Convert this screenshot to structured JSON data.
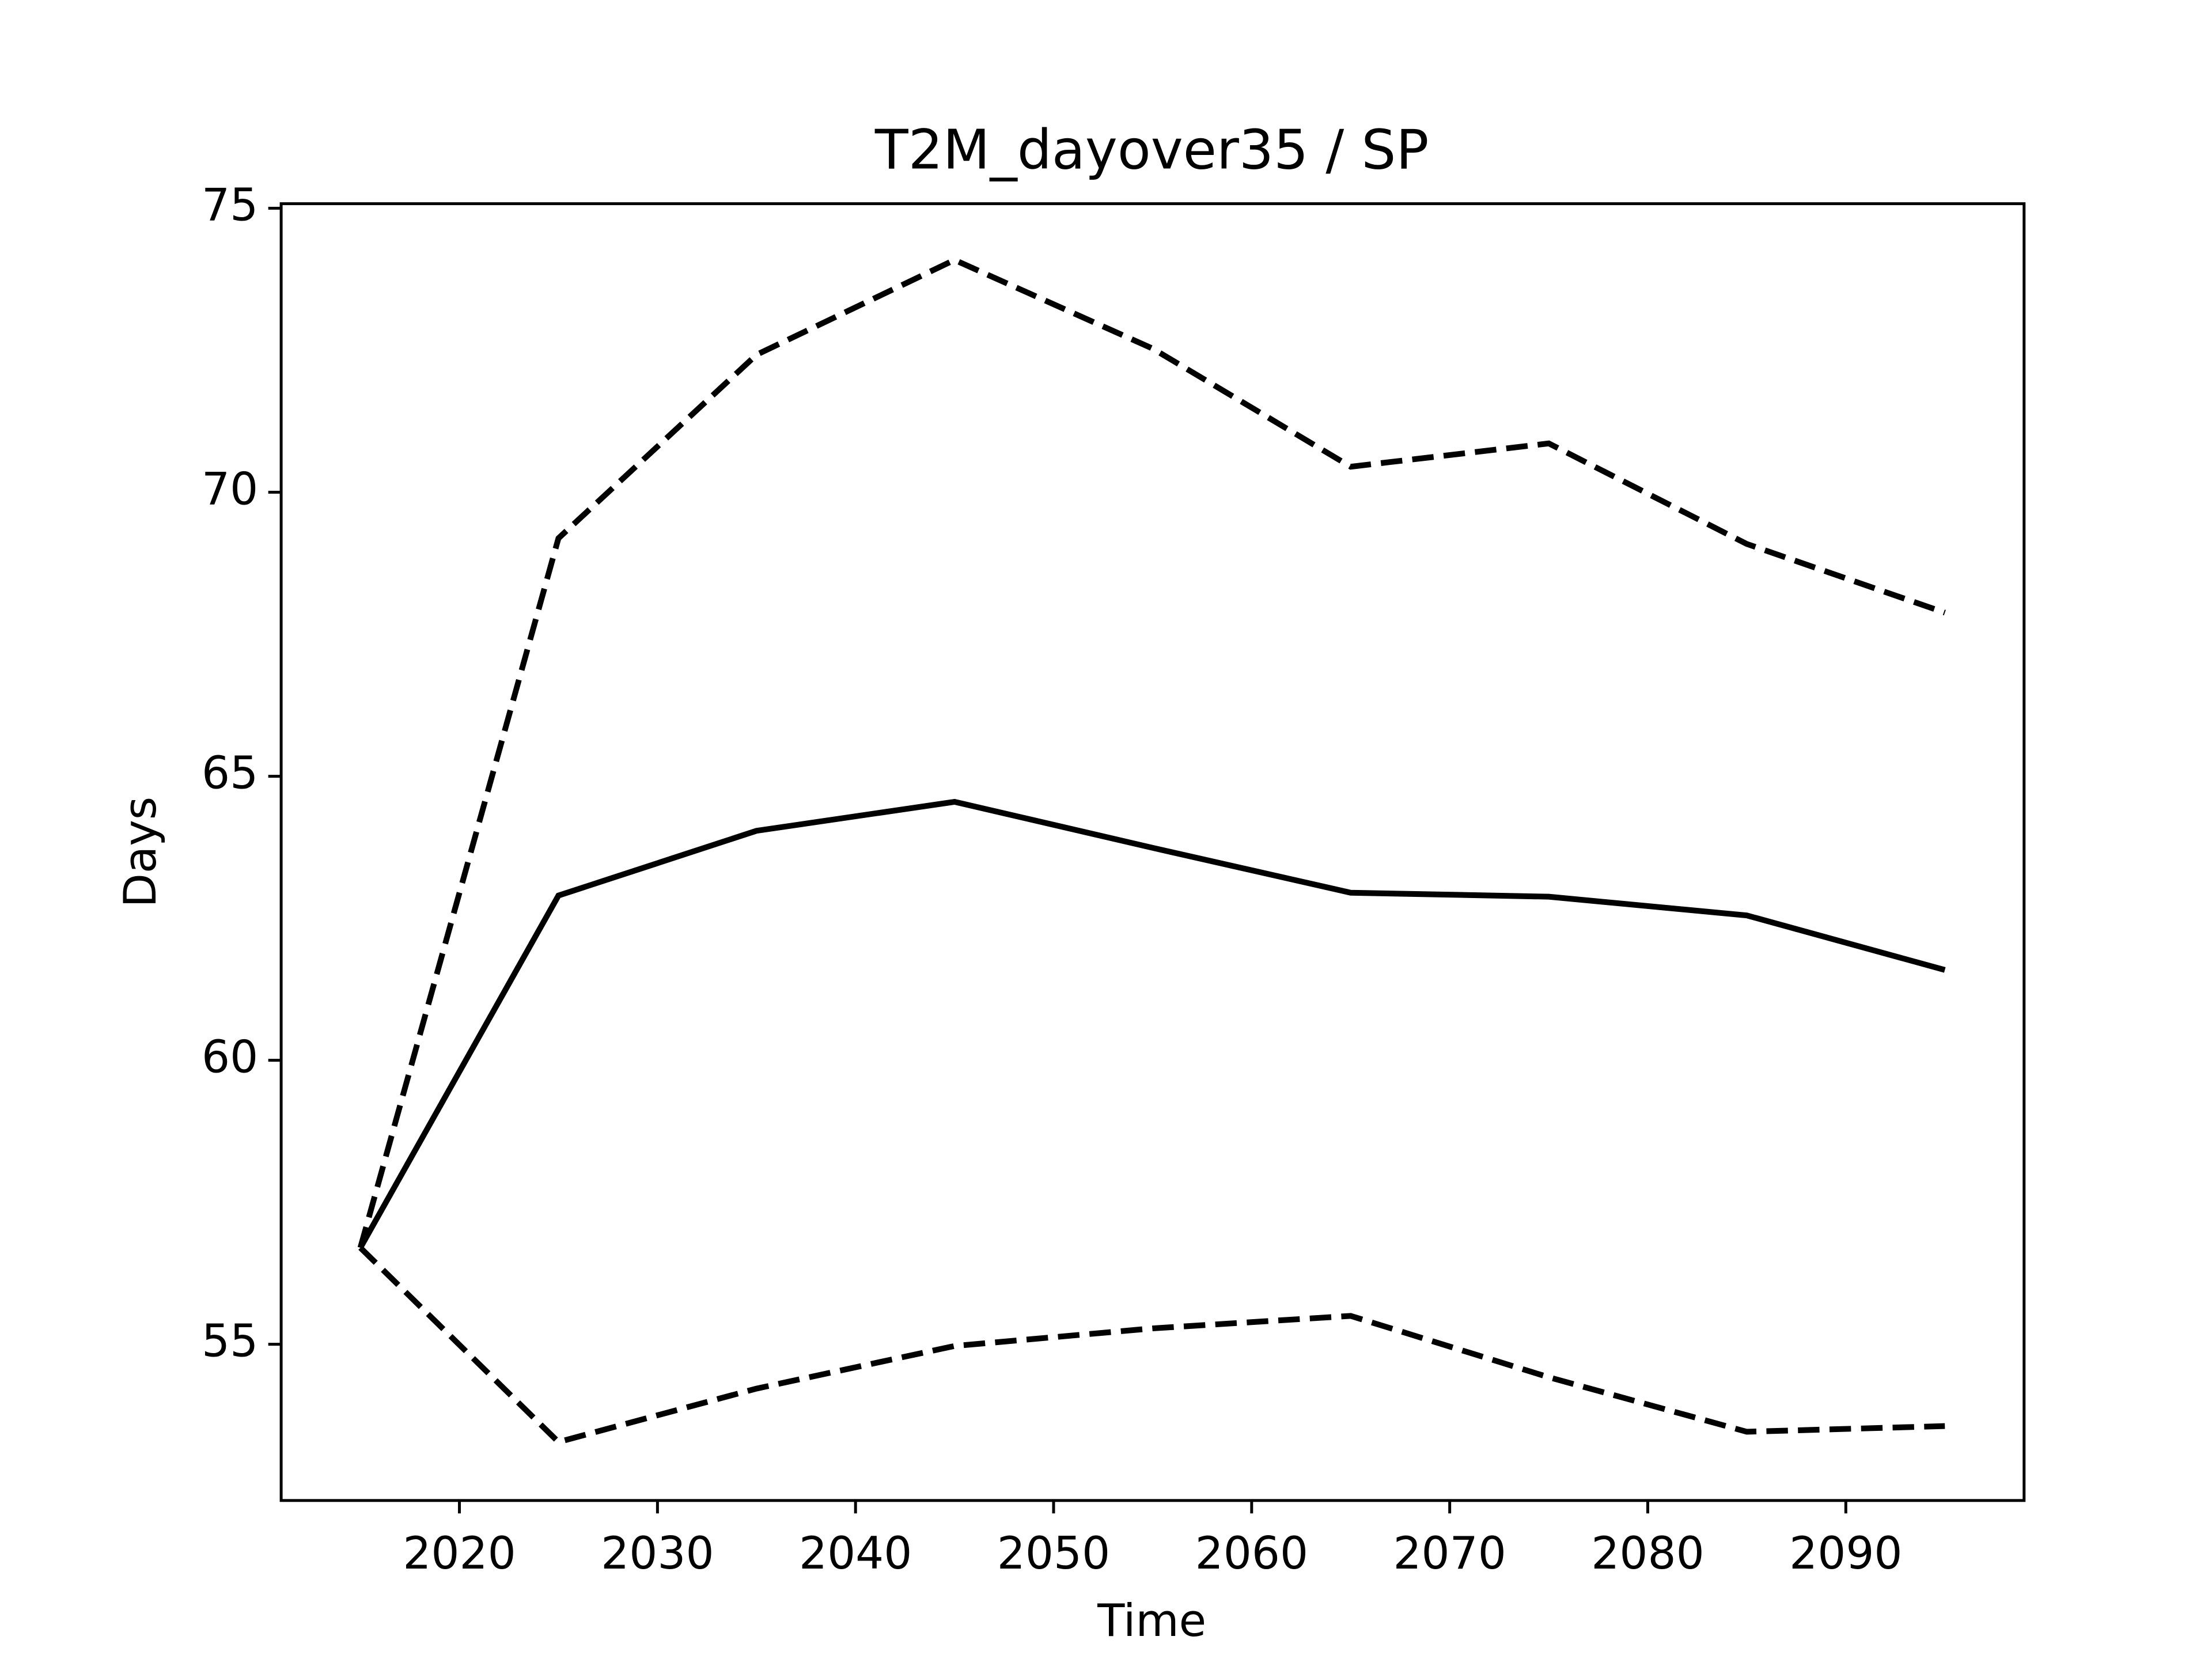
{
  "chart_data": {
    "type": "line",
    "title": "T2M_dayover35 / SP",
    "xlabel": "Time",
    "ylabel": "Days",
    "x": [
      2015,
      2025,
      2035,
      2045,
      2055,
      2065,
      2075,
      2085,
      2095
    ],
    "series": [
      {
        "color": "#000000",
        "linestyle": "solid",
        "values": [
          56.7,
          62.9,
          64.04,
          64.55,
          63.74,
          62.95,
          62.88,
          62.55,
          61.59
        ]
      },
      {
        "color": "#000000",
        "linestyle": "dashed",
        "values": [
          56.7,
          69.19,
          72.42,
          74.09,
          72.53,
          70.45,
          70.86,
          69.09,
          67.88
        ]
      },
      {
        "color": "#000000",
        "linestyle": "dashed",
        "values": [
          56.7,
          53.28,
          54.22,
          54.97,
          55.28,
          55.5,
          54.42,
          53.46,
          53.56
        ]
      }
    ],
    "xlim": [
      2011,
      2099
    ],
    "ylim": [
      52.25,
      75.08
    ],
    "xticks": [
      2020,
      2030,
      2040,
      2050,
      2060,
      2070,
      2080,
      2090
    ],
    "yticks": [
      55,
      60,
      65,
      70,
      75
    ],
    "grid": false
  }
}
